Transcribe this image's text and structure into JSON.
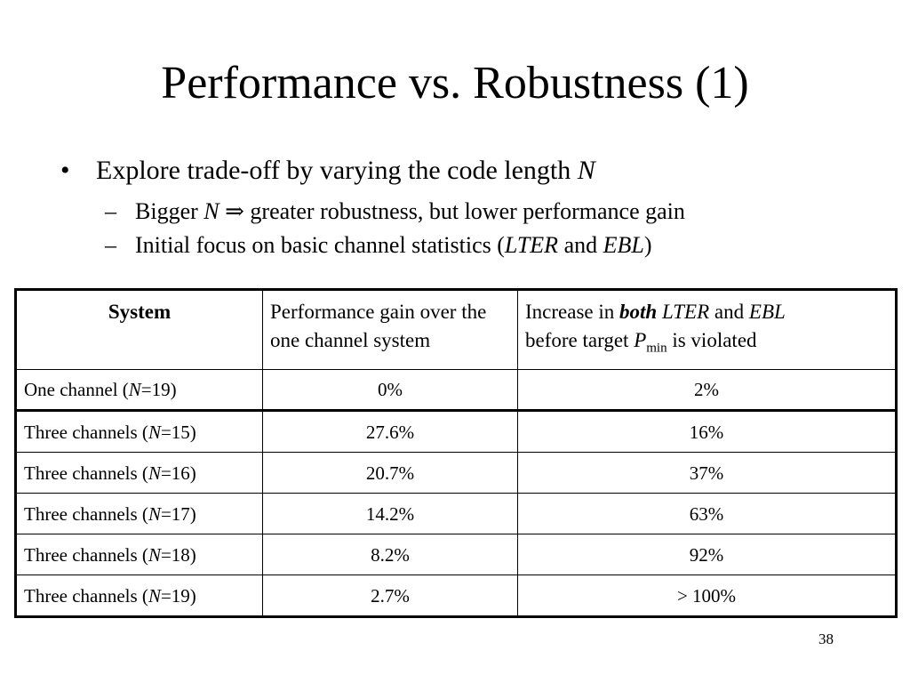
{
  "slide": {
    "title": "Performance vs. Robustness (1)",
    "page_number": "38"
  },
  "bullets": {
    "main": {
      "marker": "•",
      "text": "Explore trade-off by varying the code length ",
      "italic": "N"
    },
    "sub1": {
      "marker": "–",
      "text_a": "Bigger ",
      "italic_a": "N",
      "arrow": " ⇒ ",
      "text_b": "greater robustness, but lower performance gain"
    },
    "sub2": {
      "marker": "–",
      "text_a": "Initial focus on basic channel statistics (",
      "italic_a": "LTER",
      "text_b": " and ",
      "italic_b": "EBL",
      "text_c": ")"
    }
  },
  "table": {
    "headers": {
      "system": "System",
      "perf_gain": "Performance gain over the one channel system",
      "increase_a": "Increase in ",
      "increase_both": "both",
      "increase_lter": "LTER",
      "increase_and": " and ",
      "increase_ebl": "EBL",
      "increase_b": "before target ",
      "increase_p": "P",
      "increase_sub": "min",
      "increase_c": " is violated"
    },
    "rows": [
      {
        "name": "One channel (",
        "n": "N",
        "eq": "=19)",
        "gain": "0%",
        "increase": "2%"
      },
      {
        "name": "Three channels (",
        "n": "N",
        "eq": "=15)",
        "gain": "27.6%",
        "increase": "16%"
      },
      {
        "name": "Three channels (",
        "n": "N",
        "eq": "=16)",
        "gain": "20.7%",
        "increase": "37%"
      },
      {
        "name": "Three channels (",
        "n": "N",
        "eq": "=17)",
        "gain": "14.2%",
        "increase": "63%"
      },
      {
        "name": "Three channels (",
        "n": "N",
        "eq": "=18)",
        "gain": "8.2%",
        "increase": "92%"
      },
      {
        "name": "Three channels (",
        "n": "N",
        "eq": "=19)",
        "gain": "2.7%",
        "increase": "> 100%"
      }
    ]
  }
}
